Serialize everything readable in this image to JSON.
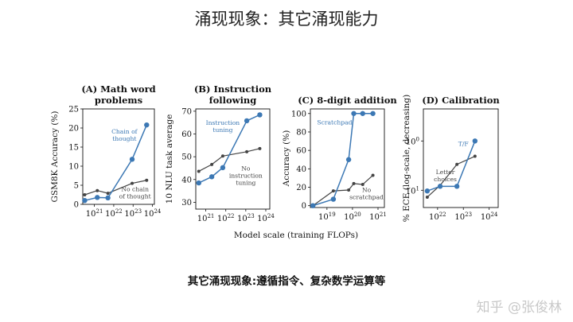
{
  "slide": {
    "title": "涌现现象：其它涌现能力",
    "caption": "其它涌现现象:遵循指令、复杂数学运算等",
    "watermark": "知乎 @张俊林"
  },
  "colors": {
    "blue": "#3c78b4",
    "gray": "#444444"
  },
  "figure": {
    "shared_xlabel": "Model scale (training FLOPs)"
  },
  "chart_data": [
    {
      "type": "line",
      "title": [
        "(A) Math word",
        "problems"
      ],
      "ylabel": "GSM8K Accuracy (%)",
      "xscale": "log",
      "xlim_exp": [
        20.4,
        24.1
      ],
      "xticks": [
        {
          "exp": 21,
          "base": "10",
          "sup": "21"
        },
        {
          "exp": 22,
          "base": "10",
          "sup": "22"
        },
        {
          "exp": 23,
          "base": "10",
          "sup": "23"
        },
        {
          "exp": 24,
          "base": "10",
          "sup": "24"
        }
      ],
      "ylim": [
        0,
        25
      ],
      "yticks": [
        0,
        5,
        10,
        15,
        20,
        25
      ],
      "series": [
        {
          "color": "blue",
          "x_exp": [
            20.5,
            21.15,
            21.7,
            22.95,
            23.7
          ],
          "y": [
            1,
            1.8,
            1.7,
            11.8,
            20.8
          ]
        },
        {
          "color": "gray",
          "x_exp": [
            20.5,
            21.15,
            21.7,
            22.95,
            23.7
          ],
          "y": [
            2.5,
            3.6,
            2.9,
            5.5,
            6.3
          ]
        }
      ],
      "annotations": [
        {
          "lines": [
            "Chain of",
            "thought"
          ],
          "color": "blue",
          "x_exp": 22.55,
          "y": 18.5
        },
        {
          "lines": [
            "No chain",
            "of thought"
          ],
          "color": "gray",
          "x_exp": 23.1,
          "y": 3.4
        }
      ]
    },
    {
      "type": "line",
      "title": [
        "(B) Instruction",
        "following"
      ],
      "ylabel": "10 NLU task average",
      "xscale": "log",
      "xlim_exp": [
        20.5,
        24.2
      ],
      "xticks": [
        {
          "exp": 21,
          "base": "10",
          "sup": "21"
        },
        {
          "exp": 22,
          "base": "10",
          "sup": "22"
        },
        {
          "exp": 23,
          "base": "10",
          "sup": "23"
        },
        {
          "exp": 24,
          "base": "10",
          "sup": "24"
        }
      ],
      "ylim": [
        27,
        71
      ],
      "yticks": [
        30,
        40,
        50,
        60,
        70
      ],
      "series": [
        {
          "color": "blue",
          "x_exp": [
            20.65,
            21.3,
            21.85,
            23.05,
            23.7
          ],
          "y": [
            38.5,
            41.2,
            45.2,
            65.8,
            68.4
          ]
        },
        {
          "color": "gray",
          "x_exp": [
            20.65,
            21.3,
            21.85,
            23.05,
            23.7
          ],
          "y": [
            43.6,
            46.6,
            50.3,
            52.2,
            53.6
          ]
        }
      ],
      "annotations": [
        {
          "lines": [
            "Instruction",
            "tuning"
          ],
          "color": "blue",
          "x_exp": 21.85,
          "y": 64
        },
        {
          "lines": [
            "No",
            "instruction",
            "tuning"
          ],
          "color": "gray",
          "x_exp": 23.0,
          "y": 44
        }
      ]
    },
    {
      "type": "line",
      "title": [
        "(C) 8-digit addition"
      ],
      "ylabel": "Accuracy (%)",
      "xscale": "log",
      "xlim_exp": [
        18.35,
        21.25
      ],
      "xticks": [
        {
          "exp": 19,
          "base": "10",
          "sup": "19"
        },
        {
          "exp": 20,
          "base": "10",
          "sup": "20"
        },
        {
          "exp": 21,
          "base": "10",
          "sup": "21"
        }
      ],
      "ylim": [
        -2,
        105
      ],
      "yticks": [
        0,
        20,
        40,
        60,
        80,
        100
      ],
      "series": [
        {
          "color": "blue",
          "x_exp": [
            18.45,
            19.25,
            19.85,
            20.05,
            20.4,
            20.8
          ],
          "y": [
            0,
            7,
            50,
            100,
            100,
            100
          ]
        },
        {
          "color": "gray",
          "x_exp": [
            18.45,
            19.25,
            19.85,
            20.05,
            20.4,
            20.8
          ],
          "y": [
            0,
            16,
            17,
            24,
            23,
            33
          ]
        }
      ],
      "annotations": [
        {
          "lines": [
            "Scratchpad"
          ],
          "color": "blue",
          "x_exp": 19.3,
          "y": 88
        },
        {
          "lines": [
            "No",
            "scratchpad"
          ],
          "color": "gray",
          "x_exp": 20.55,
          "y": 15
        }
      ]
    },
    {
      "type": "line",
      "title": [
        "(D) Calibration"
      ],
      "ylabel": "% ECE (log-scale, decreasing)",
      "xscale": "log",
      "xlim_exp": [
        21.45,
        24.35
      ],
      "xticks": [
        {
          "exp": 22,
          "base": "10",
          "sup": "22"
        },
        {
          "exp": 23,
          "base": "10",
          "sup": "23"
        },
        {
          "exp": 24,
          "base": "10",
          "sup": "24"
        }
      ],
      "yscale": "log",
      "ylim_exp": [
        -0.27,
        0.13
      ],
      "yticks": [
        {
          "exp": 0,
          "base": "10",
          "sup": "0"
        },
        {
          "exp": -0.2,
          "base": "10",
          "sup": "1"
        }
      ],
      "series": [
        {
          "color": "blue",
          "x_exp": [
            21.6,
            22.1,
            22.75,
            23.45
          ],
          "y_exp": [
            -0.203,
            -0.184,
            -0.184,
            0.0
          ]
        },
        {
          "color": "gray",
          "x_exp": [
            21.6,
            22.1,
            22.75,
            23.45
          ],
          "y_exp": [
            -0.228,
            -0.18,
            -0.095,
            -0.062
          ]
        }
      ],
      "annotations": [
        {
          "lines": [
            "T/F"
          ],
          "color": "blue",
          "x_exp": 23.0,
          "y_exp": -0.02
        },
        {
          "lines": [
            "Letter",
            "choices"
          ],
          "color": "gray",
          "x_exp": 22.3,
          "y_exp": -0.135
        }
      ]
    }
  ]
}
